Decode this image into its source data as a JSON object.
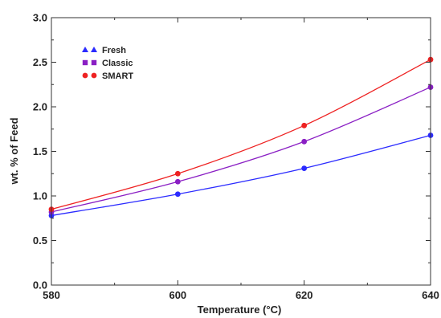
{
  "chart_data": {
    "type": "line",
    "title": "",
    "xlabel": "Temperature (°C)",
    "ylabel": "wt. % of Feed",
    "xlim": [
      580,
      640
    ],
    "ylim": [
      0.0,
      3.0
    ],
    "x_ticks": [
      "580",
      "600",
      "620",
      "640"
    ],
    "y_ticks": [
      "0.0",
      "0.5",
      "1.0",
      "1.5",
      "2.0",
      "2.5",
      "3.0"
    ],
    "grid": false,
    "legend_position": "top-left",
    "x": [
      580,
      600,
      620,
      640
    ],
    "series": [
      {
        "name": "Fresh",
        "color": "#2b2bff",
        "marker": "triangle",
        "values": [
          0.78,
          1.02,
          1.31,
          1.68
        ]
      },
      {
        "name": "Classic",
        "color": "#8a1fc4",
        "marker": "square",
        "values": [
          0.82,
          1.16,
          1.61,
          2.22
        ]
      },
      {
        "name": "SMART",
        "color": "#ee2222",
        "marker": "circle",
        "values": [
          0.85,
          1.25,
          1.79,
          2.53
        ]
      }
    ]
  }
}
